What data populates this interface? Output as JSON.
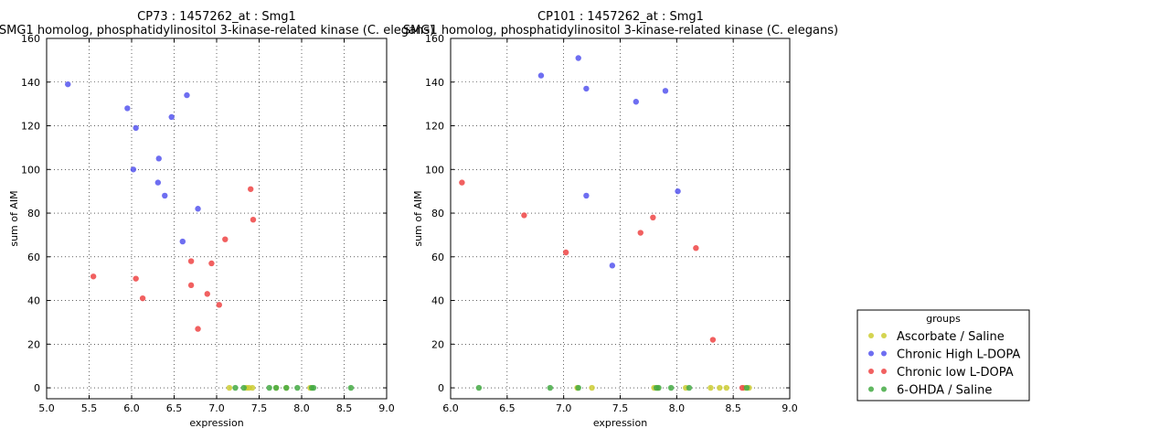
{
  "chart_data": [
    {
      "type": "scatter",
      "title": "CP73 : 1457262_at : Smg1",
      "subtitle": "SMG1 homolog, phosphatidylinositol 3-kinase-related kinase (C. elegans)",
      "xlabel": "expression",
      "ylabel": "sum of AIM",
      "xlim": [
        5.0,
        9.0
      ],
      "ylim": [
        -5,
        160
      ],
      "xticks": [
        "5.0",
        "5.5",
        "6.0",
        "6.5",
        "7.0",
        "7.5",
        "8.0",
        "8.5",
        "9.0"
      ],
      "yticks": [
        "0",
        "20",
        "40",
        "60",
        "80",
        "100",
        "120",
        "140",
        "160"
      ],
      "grid": true,
      "series": [
        {
          "name": "Ascorbate / Saline",
          "color": "#cccc33",
          "points": [
            [
              7.15,
              0
            ],
            [
              7.35,
              0
            ],
            [
              7.38,
              0
            ],
            [
              7.42,
              0
            ],
            [
              7.7,
              0
            ],
            [
              7.82,
              0
            ],
            [
              8.1,
              0
            ]
          ]
        },
        {
          "name": "Chronic High L-DOPA",
          "color": "#5555ee",
          "points": [
            [
              5.25,
              139
            ],
            [
              5.95,
              128
            ],
            [
              6.05,
              119
            ],
            [
              6.02,
              100
            ],
            [
              6.47,
              124
            ],
            [
              6.65,
              134
            ],
            [
              6.32,
              105
            ],
            [
              6.31,
              94
            ],
            [
              6.39,
              88
            ],
            [
              6.78,
              82
            ],
            [
              6.6,
              67
            ]
          ]
        },
        {
          "name": "Chronic low L-DOPA",
          "color": "#ee4444",
          "points": [
            [
              5.55,
              51
            ],
            [
              6.05,
              50
            ],
            [
              6.13,
              41
            ],
            [
              6.7,
              58
            ],
            [
              6.94,
              57
            ],
            [
              6.7,
              47
            ],
            [
              6.89,
              43
            ],
            [
              7.03,
              38
            ],
            [
              6.78,
              27
            ],
            [
              7.1,
              68
            ],
            [
              7.4,
              91
            ],
            [
              7.43,
              77
            ]
          ]
        },
        {
          "name": "6-OHDA / Saline",
          "color": "#44aa44",
          "points": [
            [
              7.22,
              0
            ],
            [
              7.32,
              0
            ],
            [
              7.62,
              0
            ],
            [
              7.7,
              0
            ],
            [
              7.82,
              0
            ],
            [
              7.95,
              0
            ],
            [
              8.12,
              0
            ],
            [
              8.14,
              0
            ],
            [
              8.58,
              0
            ]
          ]
        }
      ]
    },
    {
      "type": "scatter",
      "title": "CP101 : 1457262_at : Smg1",
      "subtitle": "SMG1 homolog, phosphatidylinositol 3-kinase-related kinase (C. elegans)",
      "xlabel": "expression",
      "ylabel": "sum of AIM",
      "xlim": [
        6.0,
        9.0
      ],
      "ylim": [
        -5,
        160
      ],
      "xticks": [
        "6.0",
        "6.5",
        "7.0",
        "7.5",
        "8.0",
        "8.5",
        "9.0"
      ],
      "yticks": [
        "0",
        "20",
        "40",
        "60",
        "80",
        "100",
        "120",
        "140",
        "160"
      ],
      "grid": true,
      "series": [
        {
          "name": "Ascorbate / Saline",
          "color": "#cccc33",
          "points": [
            [
              7.12,
              0
            ],
            [
              7.25,
              0
            ],
            [
              7.8,
              0
            ],
            [
              7.83,
              0
            ],
            [
              8.08,
              0
            ],
            [
              8.3,
              0
            ],
            [
              8.38,
              0
            ],
            [
              8.44,
              0
            ],
            [
              8.6,
              0
            ],
            [
              8.64,
              0
            ]
          ]
        },
        {
          "name": "Chronic High L-DOPA",
          "color": "#5555ee",
          "points": [
            [
              6.8,
              143
            ],
            [
              7.13,
              151
            ],
            [
              7.2,
              137
            ],
            [
              7.64,
              131
            ],
            [
              7.9,
              136
            ],
            [
              7.2,
              88
            ],
            [
              8.01,
              90
            ],
            [
              7.43,
              56
            ]
          ]
        },
        {
          "name": "Chronic low L-DOPA",
          "color": "#ee4444",
          "points": [
            [
              6.1,
              94
            ],
            [
              6.65,
              79
            ],
            [
              7.02,
              62
            ],
            [
              7.68,
              71
            ],
            [
              7.79,
              78
            ],
            [
              8.17,
              64
            ],
            [
              8.32,
              22
            ],
            [
              8.58,
              0
            ]
          ]
        },
        {
          "name": "6-OHDA / Saline",
          "color": "#44aa44",
          "points": [
            [
              6.25,
              0
            ],
            [
              6.88,
              0
            ],
            [
              7.13,
              0
            ],
            [
              7.82,
              0
            ],
            [
              7.84,
              0
            ],
            [
              7.95,
              0
            ],
            [
              8.11,
              0
            ],
            [
              8.62,
              0
            ]
          ]
        }
      ]
    }
  ],
  "legend": {
    "title": "groups",
    "placement": "bottom-right",
    "entries": [
      {
        "label": "Ascorbate / Saline",
        "color": "#cccc33"
      },
      {
        "label": "Chronic High L-DOPA",
        "color": "#5555ee"
      },
      {
        "label": "Chronic low L-DOPA",
        "color": "#ee4444"
      },
      {
        "label": "6-OHDA / Saline",
        "color": "#44aa44"
      }
    ]
  }
}
